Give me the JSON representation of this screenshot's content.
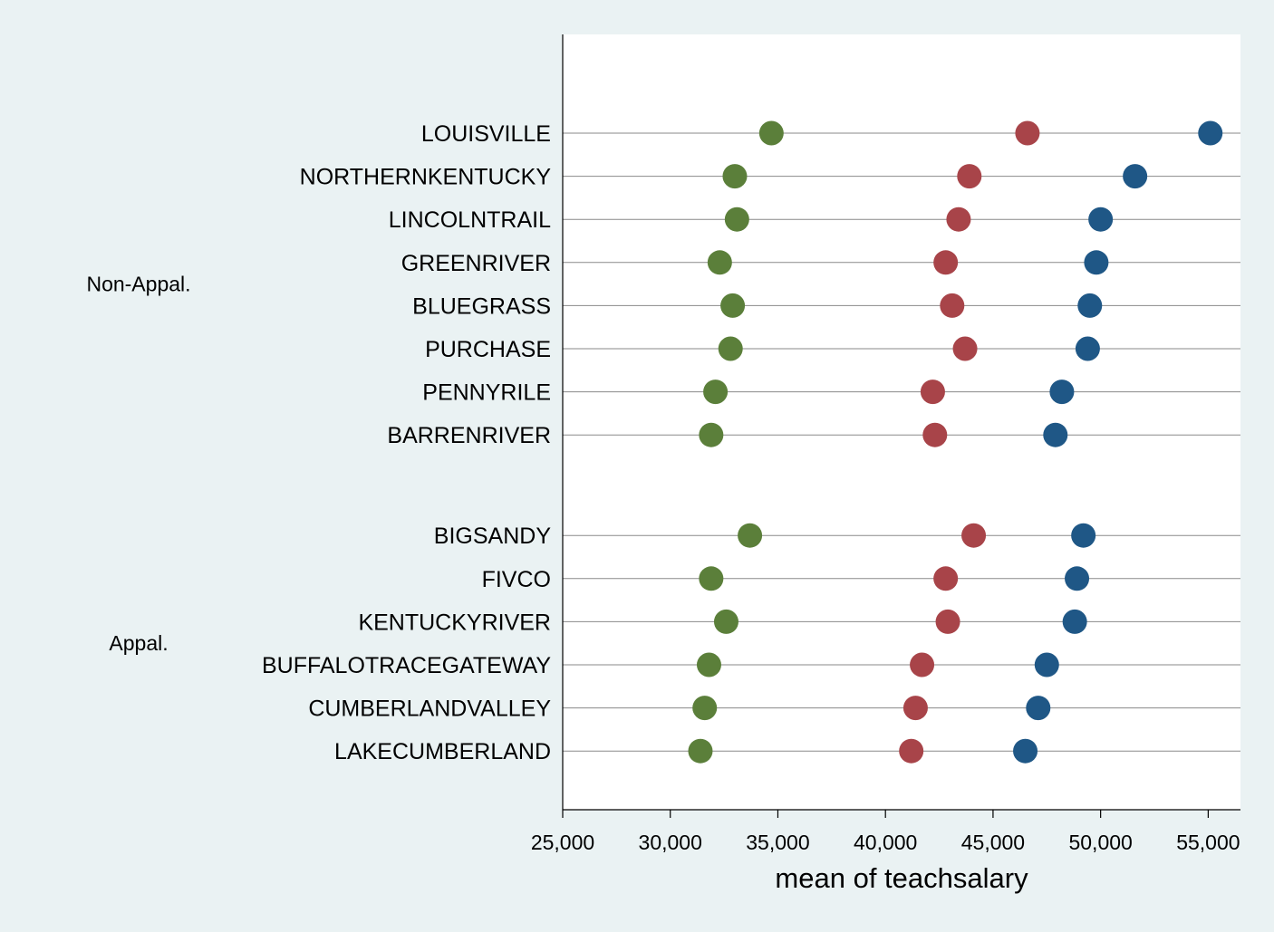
{
  "chart_data": {
    "type": "scatter",
    "title": "",
    "xlabel": "mean of teachsalary",
    "ylabel": "",
    "xlim": [
      25000,
      56500
    ],
    "xticks": [
      25000,
      30000,
      35000,
      40000,
      45000,
      50000,
      55000
    ],
    "xtick_labels": [
      "25,000",
      "30,000",
      "35,000",
      "40,000",
      "45,000",
      "50,000",
      "55,000"
    ],
    "grid": true,
    "legend": "none",
    "groups": [
      {
        "label": "Non-Appal.",
        "categories": [
          "LOUISVILLE",
          "NORTHERNKENTUCKY",
          "LINCOLNTRAIL",
          "GREENRIVER",
          "BLUEGRASS",
          "PURCHASE",
          "PENNYRILE",
          "BARRENRIVER"
        ]
      },
      {
        "label": "Appal.",
        "categories": [
          "BIGSANDY",
          "FIVCO",
          "KENTUCKYRIVER",
          "BUFFALOTRACEGATEWAY",
          "CUMBERLANDVALLEY",
          "LAKECUMBERLAND"
        ]
      }
    ],
    "series": [
      {
        "color": "#5b7f3a",
        "values": [
          34700,
          33000,
          33100,
          32300,
          32900,
          32800,
          32100,
          31900,
          33700,
          31900,
          32600,
          31800,
          31600,
          31400
        ]
      },
      {
        "color": "#a84449",
        "values": [
          46600,
          43900,
          43400,
          42800,
          43100,
          43700,
          42200,
          42300,
          44100,
          42800,
          42900,
          41700,
          41400,
          41200
        ]
      },
      {
        "color": "#1f5786",
        "values": [
          55100,
          51600,
          50000,
          49800,
          49500,
          49400,
          48200,
          47900,
          49200,
          48900,
          48800,
          47500,
          47100,
          46500
        ]
      }
    ]
  }
}
